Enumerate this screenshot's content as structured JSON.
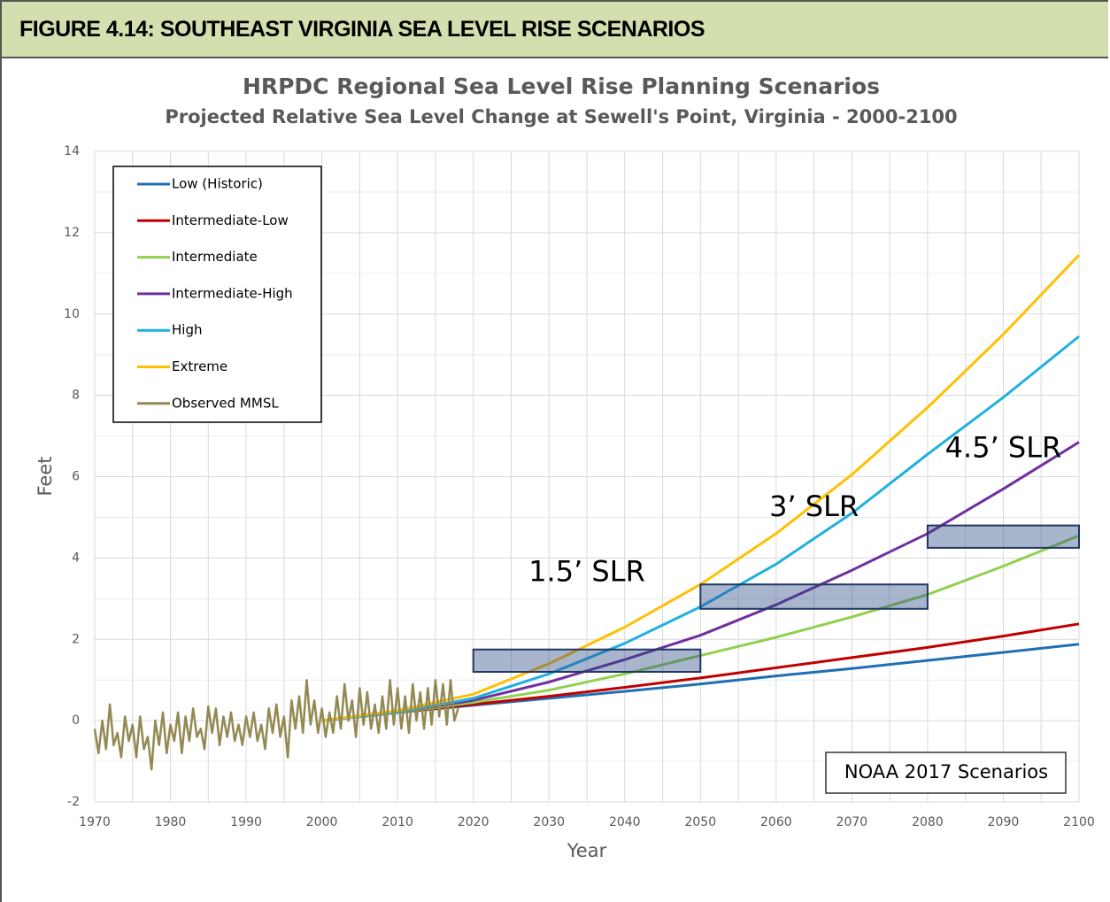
{
  "figure_label": "FIGURE 4.14:  SOUTHEAST VIRGINIA SEA LEVEL RISE SCENARIOS",
  "chart_data": {
    "type": "line",
    "title": "HRPDC Regional Sea Level Rise Planning Scenarios",
    "subtitle": "Projected Relative Sea Level Change at Sewell's Point, Virginia - 2000-2100",
    "x_label": "Year",
    "y_label": "Feet",
    "xlim": [
      1970,
      2100
    ],
    "ylim": [
      -2,
      14
    ],
    "xticks": [
      1970,
      1980,
      1990,
      2000,
      2010,
      2020,
      2030,
      2040,
      2050,
      2060,
      2070,
      2080,
      2090,
      2100
    ],
    "minor_xticks": [
      1975,
      1985,
      1995,
      2005,
      2015,
      2025,
      2035,
      2045,
      2055,
      2065,
      2075,
      2085,
      2095
    ],
    "yticks": [
      -2,
      0,
      2,
      4,
      6,
      8,
      10,
      12,
      14
    ],
    "minor_yticks": [
      -1,
      1,
      3,
      5,
      7,
      9,
      11,
      13
    ],
    "grid": true,
    "legend": "upper left",
    "x": [
      2000,
      2010,
      2020,
      2030,
      2040,
      2050,
      2060,
      2070,
      2080,
      2090,
      2100
    ],
    "series": [
      {
        "name": "Low (Historic)",
        "color": "#1f6fb4",
        "values": [
          0,
          0.2,
          0.38,
          0.55,
          0.72,
          0.9,
          1.1,
          1.28,
          1.48,
          1.68,
          1.88
        ]
      },
      {
        "name": "Intermediate-Low",
        "color": "#c00000",
        "values": [
          0,
          0.2,
          0.4,
          0.6,
          0.82,
          1.05,
          1.3,
          1.55,
          1.8,
          2.08,
          2.38
        ]
      },
      {
        "name": "Intermediate",
        "color": "#92d050",
        "values": [
          0,
          0.2,
          0.45,
          0.75,
          1.15,
          1.6,
          2.05,
          2.55,
          3.1,
          3.8,
          4.55
        ]
      },
      {
        "name": "Intermediate-High",
        "color": "#7030a0",
        "values": [
          0,
          0.2,
          0.5,
          0.95,
          1.5,
          2.1,
          2.85,
          3.7,
          4.6,
          5.7,
          6.85
        ]
      },
      {
        "name": "High",
        "color": "#1fb0e0",
        "values": [
          0,
          0.2,
          0.55,
          1.15,
          1.9,
          2.8,
          3.85,
          5.1,
          6.55,
          7.95,
          9.45
        ]
      },
      {
        "name": "Extreme",
        "color": "#ffc000",
        "values": [
          0,
          0.25,
          0.65,
          1.4,
          2.3,
          3.35,
          4.6,
          6.05,
          7.7,
          9.5,
          11.45
        ]
      },
      {
        "name": "Observed MMSL",
        "color": "#938953",
        "x": [
          1970,
          1970.5,
          1971,
          1971.5,
          1972,
          1972.5,
          1973,
          1973.5,
          1974,
          1974.5,
          1975,
          1975.5,
          1976,
          1976.5,
          1977,
          1977.5,
          1978,
          1978.5,
          1979,
          1979.5,
          1980,
          1980.5,
          1981,
          1981.5,
          1982,
          1982.5,
          1983,
          1983.5,
          1984,
          1984.5,
          1985,
          1985.5,
          1986,
          1986.5,
          1987,
          1987.5,
          1988,
          1988.5,
          1989,
          1989.5,
          1990,
          1990.5,
          1991,
          1991.5,
          1992,
          1992.5,
          1993,
          1993.5,
          1994,
          1994.5,
          1995,
          1995.5,
          1996,
          1996.5,
          1997,
          1997.5,
          1998,
          1998.5,
          1999,
          1999.5,
          2000,
          2000.5,
          2001,
          2001.5,
          2002,
          2002.5,
          2003,
          2003.5,
          2004,
          2004.5,
          2005,
          2005.5,
          2006,
          2006.5,
          2007,
          2007.5,
          2008,
          2008.5,
          2009,
          2009.5,
          2010,
          2010.5,
          2011,
          2011.5,
          2012,
          2012.5,
          2013,
          2013.5,
          2014,
          2014.5,
          2015,
          2015.5,
          2016,
          2016.5,
          2017,
          2017.5,
          2018
        ],
        "values": [
          -0.2,
          -0.8,
          0.0,
          -0.7,
          0.4,
          -0.6,
          -0.3,
          -0.9,
          0.1,
          -0.5,
          -0.1,
          -0.9,
          0.1,
          -0.7,
          -0.4,
          -1.2,
          0.0,
          -0.6,
          0.2,
          -0.8,
          -0.1,
          -0.5,
          0.2,
          -0.8,
          0.1,
          -0.5,
          0.3,
          -0.4,
          -0.2,
          -0.7,
          0.35,
          -0.3,
          0.3,
          -0.6,
          0.1,
          -0.4,
          0.2,
          -0.5,
          -0.1,
          -0.6,
          0.1,
          -0.4,
          0.2,
          -0.5,
          -0.1,
          -0.7,
          0.3,
          -0.3,
          0.4,
          -0.4,
          0.1,
          -0.9,
          0.5,
          -0.2,
          0.6,
          -0.3,
          1.0,
          -0.1,
          0.5,
          -0.3,
          0.3,
          -0.4,
          0.2,
          -0.3,
          0.6,
          -0.2,
          0.9,
          0.0,
          0.5,
          -0.4,
          0.8,
          -0.1,
          0.7,
          -0.2,
          0.4,
          -0.3,
          0.6,
          -0.2,
          1.0,
          -0.1,
          0.8,
          -0.2,
          0.6,
          -0.3,
          0.9,
          0.0,
          0.7,
          -0.2,
          0.8,
          -0.1,
          1.0,
          0.1,
          0.9,
          -0.1,
          1.0,
          0.0,
          0.3
        ]
      }
    ],
    "bands": [
      {
        "label": "1.5’ SLR",
        "x": [
          2020,
          2050
        ],
        "y": [
          1.2,
          1.75
        ]
      },
      {
        "label": "3’ SLR",
        "x": [
          2050,
          2080
        ],
        "y": [
          2.75,
          3.35
        ]
      },
      {
        "label": "4.5’ SLR",
        "x": [
          2080,
          2100
        ],
        "y": [
          4.25,
          4.8
        ]
      }
    ],
    "note": "NOAA 2017 Scenarios"
  }
}
